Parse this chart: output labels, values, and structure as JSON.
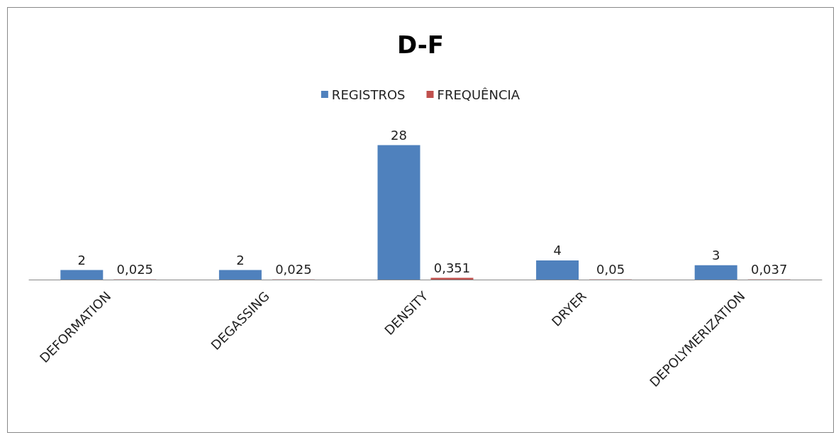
{
  "chart_data": {
    "type": "bar",
    "title": "D-F",
    "categories": [
      "DEFORMATION",
      "DEGASSING",
      "DENSITY",
      "DRYER",
      "DEPOLYMERIZATION"
    ],
    "series": [
      {
        "name": "REGISTROS",
        "color": "#4f81bd",
        "values": [
          2,
          2,
          28,
          4,
          3
        ],
        "value_labels": [
          "2",
          "2",
          "28",
          "4",
          "3"
        ]
      },
      {
        "name": "FREQUÊNCIA",
        "color": "#c0504d",
        "values": [
          0.025,
          0.025,
          0.351,
          0.05,
          0.037
        ],
        "value_labels": [
          "0,025",
          "0,025",
          "0,351",
          "0,05",
          "0,037"
        ]
      }
    ],
    "legend": "top",
    "grid": false
  }
}
